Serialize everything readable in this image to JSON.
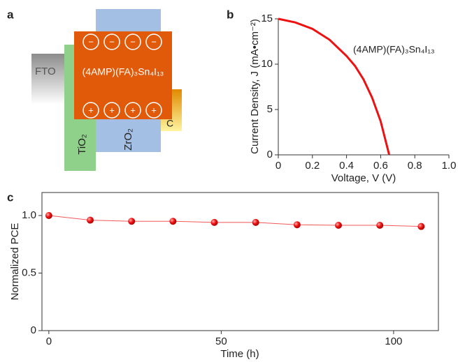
{
  "panel_labels": [
    "a",
    "b",
    "c"
  ],
  "diagram": {
    "fto": "FTO",
    "tio2": "TiO₂",
    "zro2": "ZrO₂",
    "carbon": "C",
    "perovskite": "(4AMP)(FA)₃Sn₄I₁₃",
    "negative_charges": [
      "−",
      "−",
      "−",
      "−"
    ],
    "positive_charges": [
      "+",
      "+",
      "+",
      "+"
    ]
  },
  "chart_data": [
    {
      "type": "line",
      "x_label": "Voltage, V (V)",
      "y_label": "Current Density, J (mA•cm⁻²)",
      "annotation": "(4AMP)(FA)₃Sn₄I₁₃",
      "x": [
        0,
        0.1,
        0.2,
        0.3,
        0.4,
        0.45,
        0.5,
        0.55,
        0.6,
        0.65
      ],
      "series": [
        {
          "color": "#ee1111",
          "values": [
            15,
            14.6,
            13.9,
            12.7,
            10.9,
            9.8,
            8.3,
            6.3,
            3.7,
            0
          ]
        }
      ],
      "xlim": [
        0,
        1
      ],
      "xticks": [
        0,
        0.2,
        0.4,
        0.6,
        0.8,
        {
          "value": 1,
          "label": "1.0"
        }
      ],
      "ylim": [
        0,
        15
      ],
      "yticks": [
        0,
        5,
        10,
        15
      ],
      "markers": false
    },
    {
      "type": "line",
      "x_label": "Time (h)",
      "y_label": "Normalized PCE",
      "x": [
        0,
        12,
        24,
        36,
        48,
        60,
        72,
        84,
        96,
        108
      ],
      "series": [
        {
          "color": "#ee1111",
          "values": [
            1.0,
            0.96,
            0.95,
            0.95,
            0.94,
            0.94,
            0.92,
            0.915,
            0.915,
            0.905
          ]
        }
      ],
      "xlim": [
        -2,
        113
      ],
      "xticks": [
        0,
        50,
        100
      ],
      "ylim": [
        0,
        1.2
      ],
      "yticks": [
        0,
        0.5,
        {
          "value": 1,
          "label": "1.0"
        }
      ],
      "markers": true
    }
  ]
}
